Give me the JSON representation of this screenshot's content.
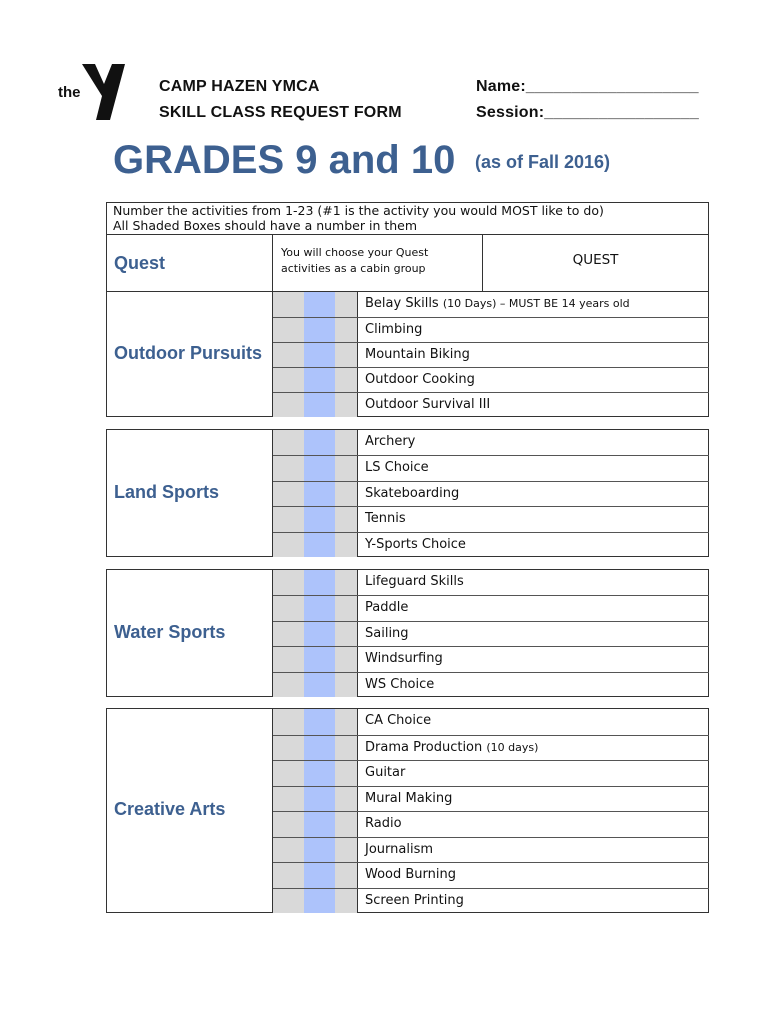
{
  "logo": {
    "text": "the",
    "mark": "YMCA"
  },
  "header": {
    "org": "CAMP HAZEN YMCA",
    "form": "SKILL CLASS REQUEST FORM",
    "name_label": "Name:___________________",
    "session_label": "Session:_________________"
  },
  "title": "GRADES 9 and 10",
  "subtitle": "(as of Fall 2016)",
  "instructions": {
    "line1": "Number the activities from 1-23 (#1 is the activity you would MOST like to do)",
    "line2": "All Shaded Boxes should have a number in them"
  },
  "quest": {
    "label": "Quest",
    "note": "You will choose your Quest activities as a cabin group",
    "value": "QUEST"
  },
  "colors": {
    "accent": "#3d6090",
    "shade_gray": "#d9d9d9",
    "shade_blue": "#adc3fb"
  },
  "sections": [
    {
      "label": "Outdoor Pursuits",
      "items": [
        {
          "name": "Belay Skills",
          "note": "(10 Days) – MUST BE 14 years old"
        },
        {
          "name": "Climbing"
        },
        {
          "name": "Mountain Biking"
        },
        {
          "name": "Outdoor Cooking"
        },
        {
          "name": "Outdoor Survival III"
        }
      ]
    },
    {
      "label": "Land Sports",
      "items": [
        {
          "name": "Archery"
        },
        {
          "name": "LS Choice"
        },
        {
          "name": "Skateboarding"
        },
        {
          "name": "Tennis"
        },
        {
          "name": "Y-Sports Choice"
        }
      ]
    },
    {
      "label": "Water Sports",
      "items": [
        {
          "name": "Lifeguard Skills"
        },
        {
          "name": "Paddle"
        },
        {
          "name": "Sailing"
        },
        {
          "name": "Windsurfing"
        },
        {
          "name": "WS Choice"
        }
      ]
    },
    {
      "label": "Creative Arts",
      "items": [
        {
          "name": "CA Choice"
        },
        {
          "name": "Drama Production",
          "note": "(10 days)"
        },
        {
          "name": "Guitar"
        },
        {
          "name": "Mural Making"
        },
        {
          "name": "Radio"
        },
        {
          "name": "Journalism"
        },
        {
          "name": "Wood Burning"
        },
        {
          "name": "Screen Printing"
        }
      ]
    }
  ]
}
